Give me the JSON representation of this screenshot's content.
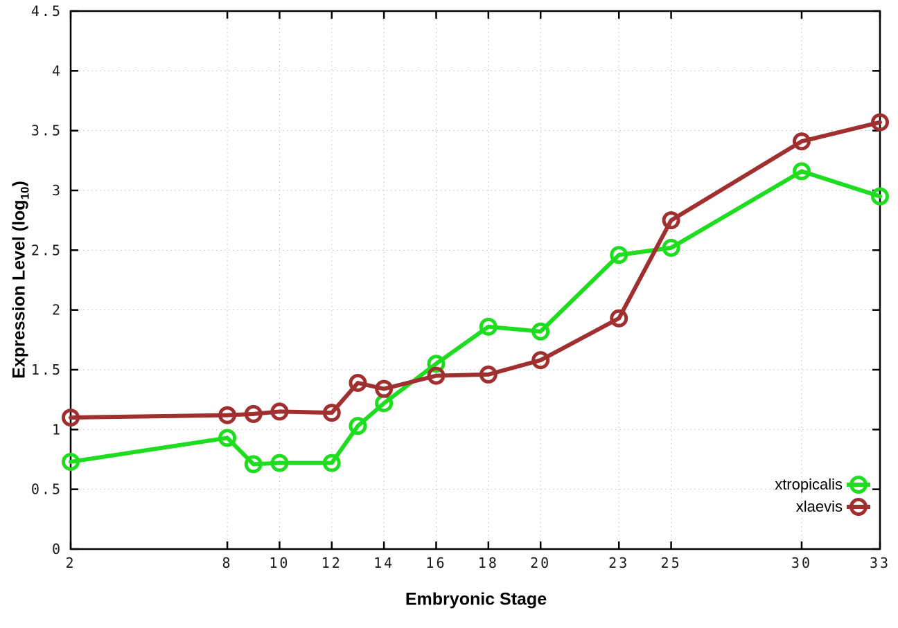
{
  "chart_data": {
    "type": "line",
    "title": "",
    "xlabel": "Embryonic Stage",
    "ylabel": "Expression Level (log10)",
    "ylabel_parts": {
      "pre": "Expression Level (log",
      "sub": "10",
      "post": ")"
    },
    "xlim": [
      2,
      33
    ],
    "ylim": [
      0,
      4.5
    ],
    "x_ticks": [
      2,
      8,
      10,
      12,
      14,
      16,
      18,
      20,
      23,
      25,
      30,
      33
    ],
    "x_tick_labels": [
      "2",
      "8",
      "10",
      "12",
      "14",
      "16",
      "18",
      "20",
      "23",
      "25",
      "30",
      "33"
    ],
    "y_ticks": [
      0,
      0.5,
      1,
      1.5,
      2,
      2.5,
      3,
      3.5,
      4,
      4.5
    ],
    "y_tick_labels": [
      "0",
      "0.5",
      "1",
      "1.5",
      "2",
      "2.5",
      "3",
      "3.5",
      "4",
      "4.5"
    ],
    "grid": true,
    "grid_style": "dotted",
    "legend_position": "bottom-right-inside",
    "background": "#ffffff",
    "colors": {
      "grid": "#b9b9b9",
      "axis": "#000000",
      "tick_label": "#1a1a1a"
    },
    "series": [
      {
        "name": "xtropicalis",
        "color": "#1edc1e",
        "marker": "open-circle",
        "x": [
          2,
          8,
          9,
          10,
          12,
          13,
          14,
          16,
          18,
          20,
          23,
          25,
          30,
          33
        ],
        "y": [
          0.73,
          0.93,
          0.71,
          0.72,
          0.72,
          1.03,
          1.22,
          1.55,
          1.86,
          1.82,
          2.46,
          2.52,
          3.16,
          2.95
        ]
      },
      {
        "name": "xlaevis",
        "color": "#a02f2f",
        "marker": "open-circle",
        "x": [
          2,
          8,
          9,
          10,
          12,
          13,
          14,
          16,
          18,
          20,
          23,
          25,
          30,
          33
        ],
        "y": [
          1.1,
          1.12,
          1.13,
          1.15,
          1.14,
          1.39,
          1.34,
          1.45,
          1.46,
          1.58,
          1.93,
          2.75,
          3.41,
          3.57
        ]
      }
    ]
  }
}
